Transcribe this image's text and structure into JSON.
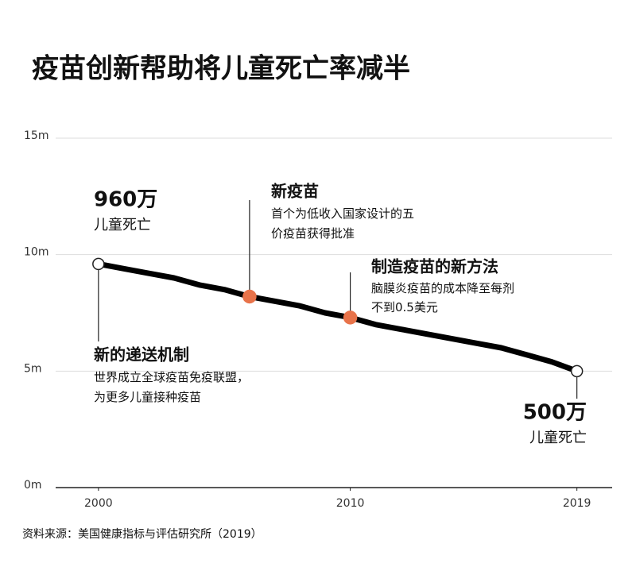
{
  "chart_data": {
    "type": "line",
    "title": "疫苗创新帮助将儿童死亡率减半",
    "source": "资料来源：美国健康指标与评估研究所（2019）",
    "x": [
      2000,
      2001,
      2002,
      2003,
      2004,
      2005,
      2006,
      2007,
      2008,
      2009,
      2010,
      2011,
      2012,
      2013,
      2014,
      2015,
      2016,
      2017,
      2018,
      2019
    ],
    "series": [
      {
        "color": "#000000",
        "values": [
          9.6,
          9.4,
          9.2,
          9.0,
          8.7,
          8.5,
          8.2,
          8.0,
          7.8,
          7.5,
          7.3,
          7.0,
          6.8,
          6.6,
          6.4,
          6.2,
          6.0,
          5.7,
          5.4,
          5.0
        ]
      }
    ],
    "xlim": [
      1998.3,
      2020.4
    ],
    "xticks": [
      2000,
      2010,
      2019
    ],
    "ylim": [
      0,
      15
    ],
    "yticks": [
      {
        "value": 0,
        "label": "0m"
      },
      {
        "value": 5,
        "label": "5m"
      },
      {
        "value": 10,
        "label": "10m"
      },
      {
        "value": 15,
        "label": "15m"
      }
    ],
    "grid": true,
    "marker_color": "#e8734a",
    "markers": [
      {
        "x": 2000,
        "style": "hollow"
      },
      {
        "x": 2006,
        "style": "filled"
      },
      {
        "x": 2010,
        "style": "filled"
      },
      {
        "x": 2019,
        "style": "hollow"
      }
    ],
    "annotations": [
      {
        "x": 2000,
        "title": "960万",
        "lines": [
          "儿童死亡"
        ]
      },
      {
        "x": 2000,
        "title": "新的递送机制",
        "lines": [
          "世界成立全球疫苗免疫联盟，",
          "为更多儿童接种疫苗"
        ]
      },
      {
        "x": 2006,
        "title": "新疫苗",
        "lines": [
          "首个为低收入国家设计的五",
          "价疫苗获得批准"
        ]
      },
      {
        "x": 2010,
        "title": "制造疫苗的新方法",
        "lines": [
          "脑膜炎疫苗的成本降至每剂",
          "不到0.5美元"
        ]
      },
      {
        "x": 2019,
        "title": "500万",
        "lines": [
          "儿童死亡"
        ]
      }
    ]
  }
}
